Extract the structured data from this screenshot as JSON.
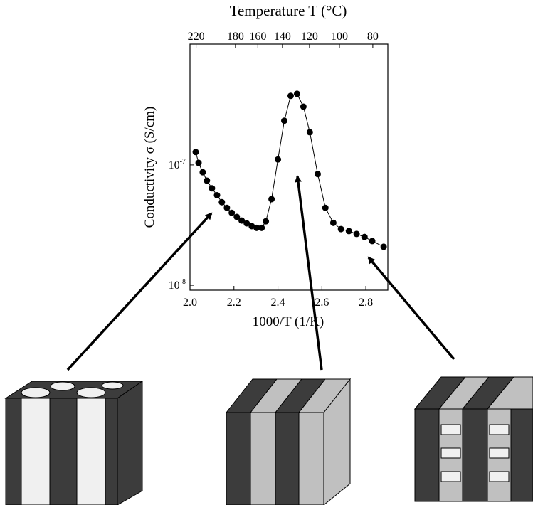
{
  "chart_data": {
    "type": "scatter",
    "top_axis_title": "Temperature T (°C)",
    "x_label": "1000/T (1/K)",
    "y_label": "Conductivity σ (S/cm)",
    "xlim": [
      2.0,
      2.9
    ],
    "xticks": [
      {
        "value": 2.0,
        "label": "2.0"
      },
      2.2,
      2.4,
      2.6,
      2.8
    ],
    "x2ticks": [
      220,
      180,
      160,
      140,
      120,
      100,
      80
    ],
    "ylim": [
      9.1e-09,
      1.01e-06
    ],
    "yticks": [
      {
        "value": 1e-08,
        "label": "10",
        "exponent": "-8"
      },
      {
        "value": 1e-07,
        "label": "10",
        "exponent": "-7"
      }
    ],
    "log_y": true,
    "series": [
      {
        "color": "#000000",
        "connect": true,
        "x": [
          2.026,
          2.039,
          2.058,
          2.077,
          2.1,
          2.123,
          2.145,
          2.168,
          2.19,
          2.213,
          2.235,
          2.258,
          2.281,
          2.303,
          2.326,
          2.345,
          2.371,
          2.4,
          2.429,
          2.458,
          2.487,
          2.516,
          2.545,
          2.581,
          2.616,
          2.652,
          2.687,
          2.723,
          2.758,
          2.794,
          2.829,
          2.881
        ],
        "values": [
          1.28e-07,
          1.04e-07,
          8.7e-08,
          7.4e-08,
          6.4e-08,
          5.6e-08,
          4.9e-08,
          4.4e-08,
          4e-08,
          3.7e-08,
          3.45e-08,
          3.27e-08,
          3.1e-08,
          3e-08,
          3e-08,
          3.4e-08,
          5.2e-08,
          1.11e-07,
          2.33e-07,
          3.75e-07,
          3.9e-07,
          3.05e-07,
          1.87e-07,
          8.4e-08,
          4.4e-08,
          3.3e-08,
          2.93e-08,
          2.82e-08,
          2.67e-08,
          2.52e-08,
          2.33e-08,
          2.09e-08
        ]
      }
    ]
  }
}
